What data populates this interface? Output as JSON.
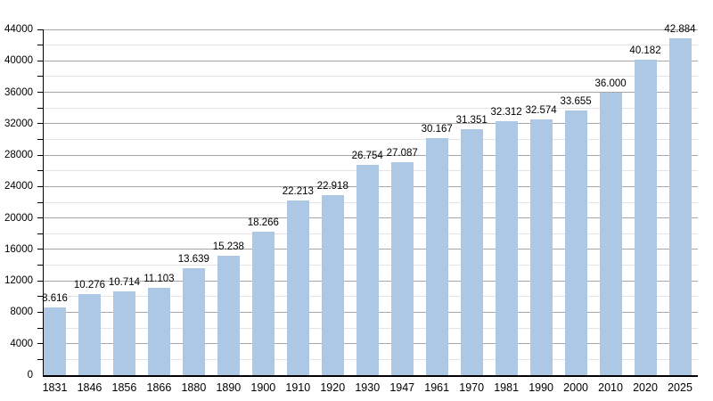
{
  "chart_data": {
    "type": "bar",
    "title": "",
    "xlabel": "",
    "ylabel": "",
    "categories": [
      "1831",
      "1846",
      "1856",
      "1866",
      "1880",
      "1890",
      "1900",
      "1910",
      "1920",
      "1930",
      "1947",
      "1961",
      "1970",
      "1981",
      "1990",
      "2000",
      "2010",
      "2020",
      "2025"
    ],
    "values": [
      8616,
      10276,
      10714,
      11103,
      13639,
      15238,
      18266,
      22213,
      22918,
      26754,
      27087,
      30167,
      31351,
      32312,
      32574,
      33655,
      36000,
      40182,
      42884
    ],
    "value_labels": [
      "8.616",
      "10.276",
      "10.714",
      "11.103",
      "13.639",
      "15.238",
      "18.266",
      "22.213",
      "22.918",
      "26.754",
      "27.087",
      "30.167",
      "31.351",
      "32.312",
      "32.574",
      "33.655",
      "36.000",
      "40.182",
      "42.884"
    ],
    "ylim": [
      0,
      44000
    ],
    "y_major_step": 4000,
    "y_minor_step": 2000,
    "y_tick_labels": [
      "0",
      "4000",
      "8000",
      "12000",
      "16000",
      "20000",
      "24000",
      "28000",
      "32000",
      "36000",
      "40000",
      "44000"
    ],
    "legend": null,
    "grid": "horizontal-major-and-minor",
    "colors": {
      "bar_fill": "#acc8e4",
      "major_grid": "#a6a6a6",
      "minor_grid": "#e4e4e4",
      "axis": "#000000",
      "text": "#000000",
      "background": "#ffffff"
    }
  }
}
